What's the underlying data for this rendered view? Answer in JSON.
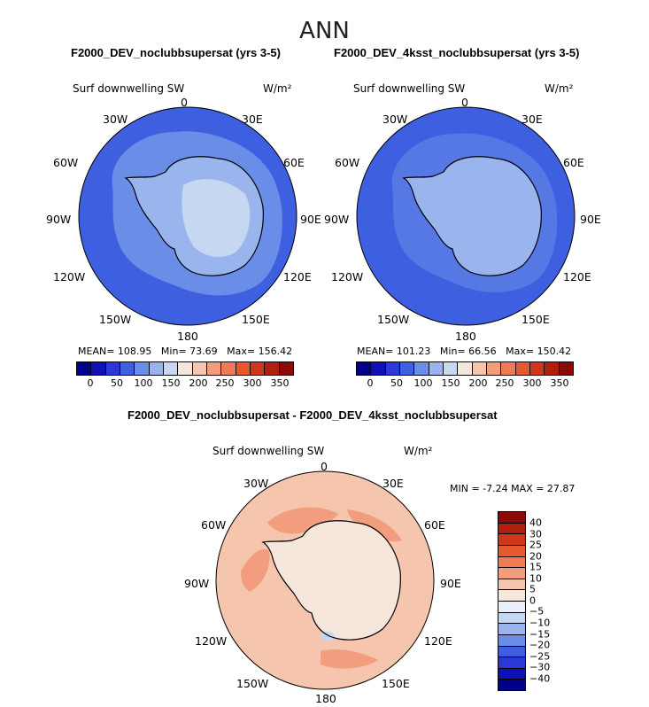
{
  "figure": {
    "title": "ANN",
    "colors": {
      "sw_scale": [
        "#00008b",
        "#1010b8",
        "#2a38d6",
        "#3e5fe0",
        "#6a8de8",
        "#9ab4ee",
        "#c6d7f2",
        "#f6e7dc",
        "#f5c6ad",
        "#f29e7e",
        "#ef7a55",
        "#e8582e",
        "#d0361a",
        "#b01f0d",
        "#8b0a05"
      ],
      "diff_scale": [
        "#8b0a05",
        "#b01f0d",
        "#d0361a",
        "#e8582e",
        "#ef7a55",
        "#f29e7e",
        "#f5c6ad",
        "#f6e7dc",
        "#eaf0fa",
        "#c6d7f2",
        "#9ab4ee",
        "#6a8de8",
        "#3e5fe0",
        "#2a38d6",
        "#1010b8",
        "#00008b"
      ]
    }
  },
  "panels": [
    {
      "title": "F2000_DEV_noclubbsupersat (yrs 3-5)",
      "variable": "Surf downwelling SW",
      "units": "W/m²",
      "stats": {
        "mean_label": "MEAN=",
        "mean": "108.95",
        "min_label": "Min=",
        "min": "73.69",
        "max_label": "Max=",
        "max": "156.42"
      },
      "colorbar_ticks": [
        "0",
        "50",
        "100",
        "150",
        "200",
        "250",
        "300",
        "350"
      ],
      "ocean_color": "#3e5fe0",
      "ring_color": "#6a8de8",
      "land_color": "#9ab4ee",
      "interior_color": "#c6d7f2"
    },
    {
      "title": "F2000_DEV_4ksst_noclubbsupersat (yrs 3-5)",
      "variable": "Surf downwelling SW",
      "units": "W/m²",
      "stats": {
        "mean_label": "MEAN=",
        "mean": "101.23",
        "min_label": "Min=",
        "min": "66.56",
        "max_label": "Max=",
        "max": "150.42"
      },
      "colorbar_ticks": [
        "0",
        "50",
        "100",
        "150",
        "200",
        "250",
        "300",
        "350"
      ],
      "ocean_color": "#3e5fe0",
      "ring_color": "#5578e4",
      "land_color": "#9ab4ee",
      "interior_color": "#c6d7f2"
    }
  ],
  "diff_panel": {
    "title": "F2000_DEV_noclubbsupersat - F2000_DEV_4ksst_noclubbsupersat",
    "variable": "Surf downwelling SW",
    "units": "W/m²",
    "stats": {
      "min_label": "MIN =",
      "min": "-7.24",
      "max_label": "MAX =",
      "max": "27.87"
    },
    "colorbar_ticks": [
      "40",
      "30",
      "25",
      "20",
      "15",
      "10",
      "5",
      "0",
      "−5",
      "−10",
      "−15",
      "−20",
      "−25",
      "−30",
      "−40"
    ],
    "ocean_color": "#f5c6ad",
    "patch_color": "#f29e7e",
    "land_color": "#f6e7dc"
  },
  "longitude_labels": {
    "lon_0": "0",
    "lon_30e": "30E",
    "lon_60e": "60E",
    "lon_90e": "90E",
    "lon_120e": "120E",
    "lon_150e": "150E",
    "lon_180": "180",
    "lon_150w": "150W",
    "lon_120w": "120W",
    "lon_90w": "90W",
    "lon_60w": "60W",
    "lon_30w": "30W"
  },
  "map_meta": {
    "projection": "south-polar stereographic",
    "lon_order": [
      "0",
      "30E",
      "60E",
      "90E",
      "120E",
      "150E",
      "180",
      "150W",
      "120W",
      "90W",
      "60W",
      "30W"
    ]
  }
}
